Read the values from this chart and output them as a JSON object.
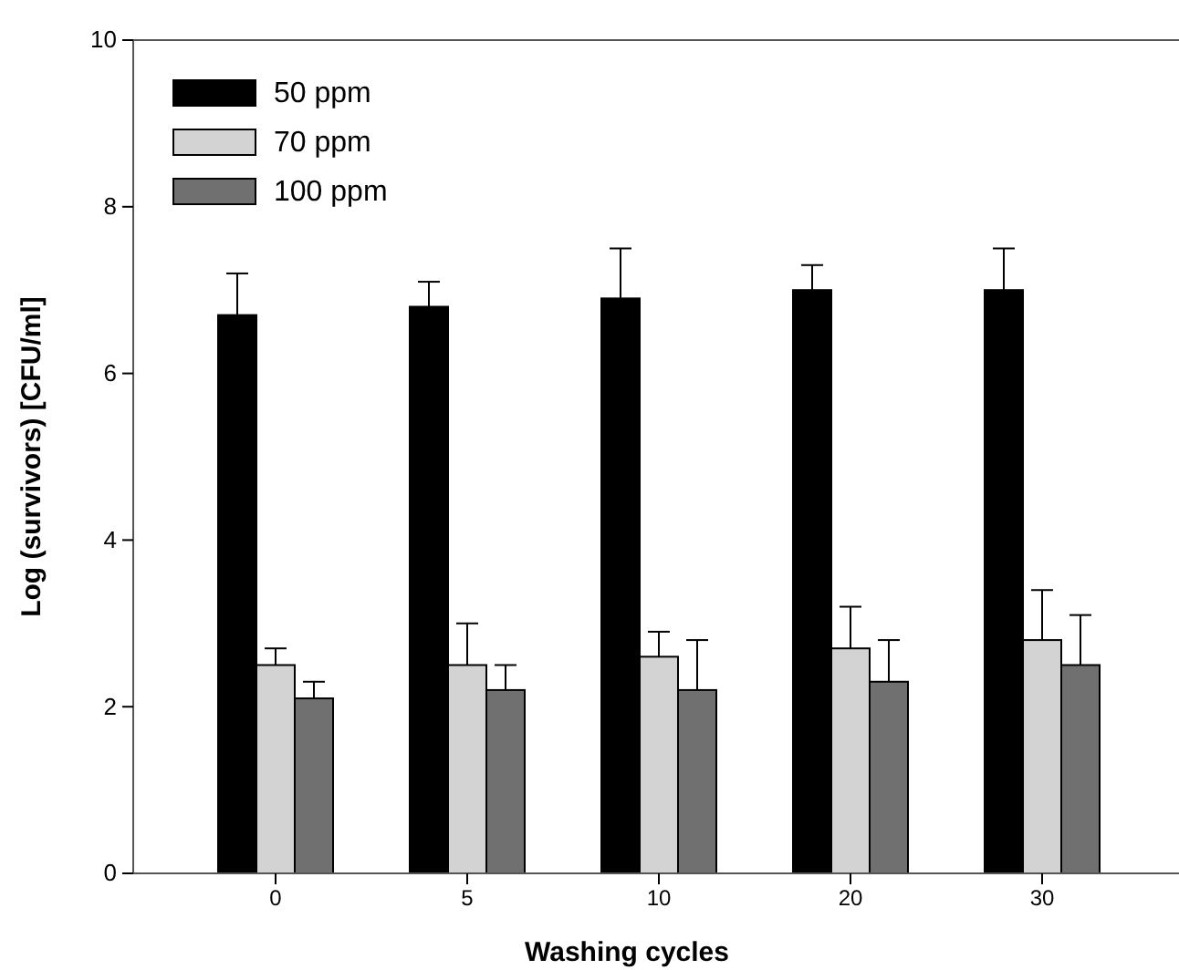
{
  "chart_data": {
    "type": "bar",
    "xlabel": "Washing cycles",
    "ylabel": "Log (survivors) [CFU/ml]",
    "categories": [
      "0",
      "5",
      "10",
      "20",
      "30"
    ],
    "series": [
      {
        "name": "50 ppm",
        "color": "#000000",
        "values": [
          6.7,
          6.8,
          6.9,
          7.0,
          7.0
        ],
        "errors": [
          [
            6.7,
            7.2
          ],
          [
            6.8,
            7.1
          ],
          [
            6.9,
            7.5
          ],
          [
            7.0,
            7.3
          ],
          [
            7.0,
            7.5
          ]
        ]
      },
      {
        "name": "70 ppm",
        "color": "#d3d3d3",
        "values": [
          2.5,
          2.5,
          2.6,
          2.7,
          2.8
        ],
        "errors": [
          [
            2.5,
            2.7
          ],
          [
            2.5,
            3.0
          ],
          [
            2.6,
            2.9
          ],
          [
            2.7,
            3.2
          ],
          [
            2.8,
            3.4
          ]
        ]
      },
      {
        "name": "100 ppm",
        "color": "#707070",
        "values": [
          2.1,
          2.2,
          2.2,
          2.3,
          2.5
        ],
        "errors": [
          [
            2.1,
            2.3
          ],
          [
            2.2,
            2.5
          ],
          [
            2.2,
            2.8
          ],
          [
            2.3,
            2.8
          ],
          [
            2.5,
            3.1
          ]
        ]
      }
    ],
    "ylim": [
      0,
      10
    ],
    "yticks": [
      0,
      2,
      4,
      6,
      8,
      10
    ],
    "legend": "top left",
    "grid": false
  }
}
